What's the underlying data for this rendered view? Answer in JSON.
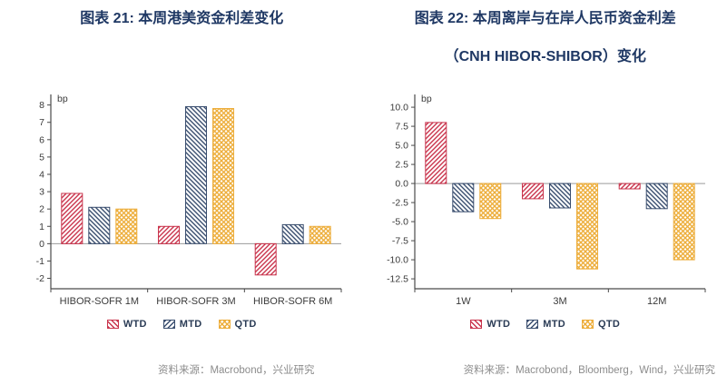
{
  "theme": {
    "title_color": "#1F3864",
    "axis_color": "#4a4a4a",
    "text_color": "#3a3a3a",
    "source_color": "#8C8C8C",
    "background": "#FFFFFF"
  },
  "chart_data": [
    {
      "type": "bar",
      "title": "图表 21: 本周港美资金利差变化",
      "title_line2": "",
      "unit_label": "bp",
      "categories": [
        "HIBOR-SOFR 1M",
        "HIBOR-SOFR 3M",
        "HIBOR-SOFR 6M"
      ],
      "series": [
        {
          "name": "WTD",
          "color": "#C9344C",
          "hatch": "diag-up",
          "values": [
            2.9,
            1.0,
            -1.8
          ]
        },
        {
          "name": "MTD",
          "color": "#3A4E6F",
          "hatch": "diag-down",
          "values": [
            2.1,
            7.9,
            1.1
          ]
        },
        {
          "name": "QTD",
          "color": "#EDAE3C",
          "hatch": "cross",
          "values": [
            2.0,
            7.8,
            1.0
          ]
        }
      ],
      "ylim": [
        -2.6,
        8.4
      ],
      "yticks": [
        -2,
        -1,
        0,
        1,
        2,
        3,
        4,
        5,
        6,
        7,
        8
      ],
      "ytick_format": "int",
      "grid": false,
      "legend_position": "bottom",
      "legend_labels": [
        "WTD",
        "MTD",
        "QTD"
      ],
      "source": "资料来源：Macrobond，兴业研究"
    },
    {
      "type": "bar",
      "title": "图表 22: 本周离岸与在岸人民币资金利差",
      "title_line2": "（CNH HIBOR-SHIBOR）变化",
      "unit_label": "bp",
      "categories": [
        "1W",
        "3M",
        "12M"
      ],
      "series": [
        {
          "name": "WTD",
          "color": "#C9344C",
          "hatch": "diag-up",
          "values": [
            8.0,
            -2.0,
            -0.7
          ]
        },
        {
          "name": "MTD",
          "color": "#3A4E6F",
          "hatch": "diag-down",
          "values": [
            -3.7,
            -3.2,
            -3.3
          ]
        },
        {
          "name": "QTD",
          "color": "#EDAE3C",
          "hatch": "cross",
          "values": [
            -4.6,
            -11.2,
            -10.0
          ]
        }
      ],
      "ylim": [
        -13.8,
        11.2
      ],
      "yticks": [
        -12.5,
        -10,
        -7.5,
        -5,
        -2.5,
        0,
        2.5,
        5,
        7.5,
        10
      ],
      "ytick_format": "1dp",
      "grid": false,
      "legend_position": "bottom",
      "legend_labels": [
        "WTD",
        "MTD",
        "QTD"
      ],
      "source": "资料来源：Macrobond，Bloomberg，Wind，兴业研究"
    }
  ]
}
